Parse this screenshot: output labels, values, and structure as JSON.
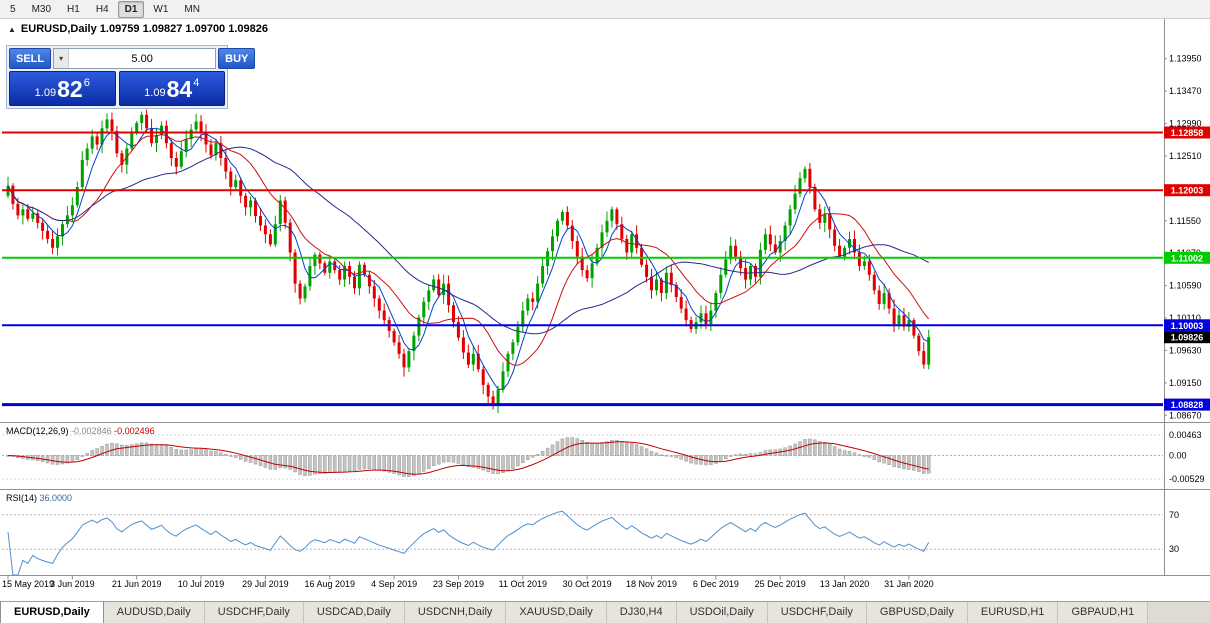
{
  "toolbar": {
    "timeframes": [
      {
        "label": "5",
        "active": false
      },
      {
        "label": "M30",
        "active": false
      },
      {
        "label": "H1",
        "active": false
      },
      {
        "label": "H4",
        "active": false
      },
      {
        "label": "D1",
        "active": true
      },
      {
        "label": "W1",
        "active": false
      },
      {
        "label": "MN",
        "active": false
      }
    ]
  },
  "chart": {
    "collapse_icon": "▲",
    "symbol_info": "EURUSD,Daily 1.09759 1.09827 1.09700 1.09826",
    "trade_panel": {
      "sell_label": "SELL",
      "buy_label": "BUY",
      "volume": "5.00",
      "sell_price": {
        "prefix": "1.09",
        "big": "82",
        "sup": "6"
      },
      "buy_price": {
        "prefix": "1.09",
        "big": "84",
        "sup": "4"
      }
    },
    "y_axis_labels": [
      "1.13950",
      "1.13470",
      "1.12990",
      "1.12510",
      "1.12030",
      "1.11550",
      "1.11070",
      "1.10590",
      "1.10110",
      "1.09630",
      "1.09150",
      "1.08670"
    ],
    "x_axis_labels": [
      "15 May 2019",
      "3 Jun 2019",
      "21 Jun 2019",
      "10 Jul 2019",
      "29 Jul 2019",
      "16 Aug 2019",
      "4 Sep 2019",
      "23 Sep 2019",
      "11 Oct 2019",
      "30 Oct 2019",
      "18 Nov 2019",
      "6 Dec 2019",
      "25 Dec 2019",
      "13 Jan 2020",
      "31 Jan 2020"
    ],
    "levels": [
      {
        "price": 1.12858,
        "label": "1.12858",
        "color": "#e00000",
        "width": 2
      },
      {
        "price": 1.12003,
        "label": "1.12003",
        "color": "#e00000",
        "width": 2
      },
      {
        "price": 1.11002,
        "label": "1.11002",
        "color": "#00cc00",
        "width": 2
      },
      {
        "price": 1.10003,
        "label": "1.10003",
        "color": "#0000e0",
        "width": 2
      },
      {
        "price": 1.08828,
        "label": "1.08828",
        "color": "#0000e0",
        "width": 3
      }
    ],
    "current_price": {
      "value": 1.09826,
      "label": "1.09826",
      "color": "#000000"
    },
    "candles": {
      "up_color": "#00a000",
      "down_color": "#e00000",
      "closes": [
        1.1207,
        1.118,
        1.1163,
        1.1172,
        1.1158,
        1.1166,
        1.1152,
        1.114,
        1.1128,
        1.1115,
        1.1132,
        1.115,
        1.1163,
        1.1178,
        1.1205,
        1.1245,
        1.1262,
        1.128,
        1.1268,
        1.1292,
        1.1305,
        1.1288,
        1.1255,
        1.1238,
        1.1262,
        1.1285,
        1.13,
        1.1312,
        1.1292,
        1.127,
        1.1282,
        1.1296,
        1.127,
        1.1248,
        1.1235,
        1.1258,
        1.1276,
        1.129,
        1.1302,
        1.1285,
        1.1268,
        1.1252,
        1.127,
        1.1248,
        1.1228,
        1.1205,
        1.1215,
        1.1192,
        1.1175,
        1.1185,
        1.1162,
        1.1148,
        1.1135,
        1.112,
        1.115,
        1.1185,
        1.1152,
        1.1108,
        1.1062,
        1.104,
        1.1058,
        1.1088,
        1.1105,
        1.1092,
        1.1078,
        1.1095,
        1.1082,
        1.1068,
        1.1088,
        1.1072,
        1.1055,
        1.109,
        1.1075,
        1.1058,
        1.104,
        1.1022,
        1.1008,
        1.0992,
        1.0975,
        1.0958,
        1.0938,
        1.0962,
        1.0985,
        1.1012,
        1.1035,
        1.1052,
        1.1068,
        1.1045,
        1.1062,
        1.103,
        1.1005,
        1.0982,
        1.096,
        1.0942,
        1.0958,
        1.0935,
        1.0912,
        1.0895,
        1.0882,
        1.0905,
        1.0932,
        1.0958,
        1.0975,
        1.0998,
        1.1022,
        1.104,
        1.1035,
        1.1062,
        1.1088,
        1.111,
        1.1132,
        1.1155,
        1.1168,
        1.1148,
        1.1125,
        1.1102,
        1.1082,
        1.107,
        1.1092,
        1.1115,
        1.1138,
        1.1155,
        1.1172,
        1.115,
        1.1128,
        1.1108,
        1.1135,
        1.1115,
        1.109,
        1.1072,
        1.1052,
        1.1068,
        1.1048,
        1.1078,
        1.106,
        1.1042,
        1.1025,
        1.1008,
        1.0995,
        1.1005,
        1.1018,
        1.1002,
        1.1022,
        1.1048,
        1.1075,
        1.1098,
        1.1118,
        1.1102,
        1.1085,
        1.1068,
        1.1088,
        1.1072,
        1.1112,
        1.1135,
        1.112,
        1.1108,
        1.1125,
        1.1148,
        1.1172,
        1.1195,
        1.1218,
        1.1232,
        1.1205,
        1.1172,
        1.1152,
        1.1165,
        1.1142,
        1.1118,
        1.1102,
        1.1115,
        1.1128,
        1.1108,
        1.1088,
        1.1095,
        1.1075,
        1.1052,
        1.1032,
        1.1048,
        1.1025,
        1.1002,
        1.1015,
        1.0998,
        1.1008,
        1.0985,
        1.0962,
        1.0942,
        1.09826
      ]
    },
    "moving_averages": [
      {
        "period": 5,
        "color": "#0044cc"
      },
      {
        "period": 13,
        "color": "#cc1111"
      },
      {
        "period": 34,
        "color": "#28288c"
      }
    ]
  },
  "macd": {
    "name": "MACD(12,26,9)",
    "main_value": "-0.002846",
    "signal_value": "-0.002496",
    "params": [
      12,
      26,
      9
    ],
    "axis": [
      {
        "label": "0.00463",
        "value": 0.00463
      },
      {
        "label": "0.00",
        "value": 0
      },
      {
        "label": "-0.00529",
        "value": -0.00529
      }
    ],
    "histogram_color": "#c4c4c4",
    "signal_color": "#c00000"
  },
  "rsi": {
    "name": "RSI(14)",
    "value": "36.0000",
    "period": 14,
    "levels": [
      70,
      30
    ],
    "axis_labels": [
      "70",
      "30"
    ],
    "line_color": "#4f8fd0"
  },
  "tabs": [
    {
      "label": "EURUSD,Daily",
      "active": true
    },
    {
      "label": "AUDUSD,Daily",
      "active": false
    },
    {
      "label": "USDCHF,Daily",
      "active": false
    },
    {
      "label": "USDCAD,Daily",
      "active": false
    },
    {
      "label": "USDCNH,Daily",
      "active": false
    },
    {
      "label": "XAUUSD,Daily",
      "active": false
    },
    {
      "label": "DJ30,H4",
      "active": false
    },
    {
      "label": "USDOil,Daily",
      "active": false
    },
    {
      "label": "USDCHF,Daily",
      "active": false
    },
    {
      "label": "GBPUSD,Daily",
      "active": false
    },
    {
      "label": "EURUSD,H1",
      "active": false
    },
    {
      "label": "GBPAUD,H1",
      "active": false
    }
  ]
}
